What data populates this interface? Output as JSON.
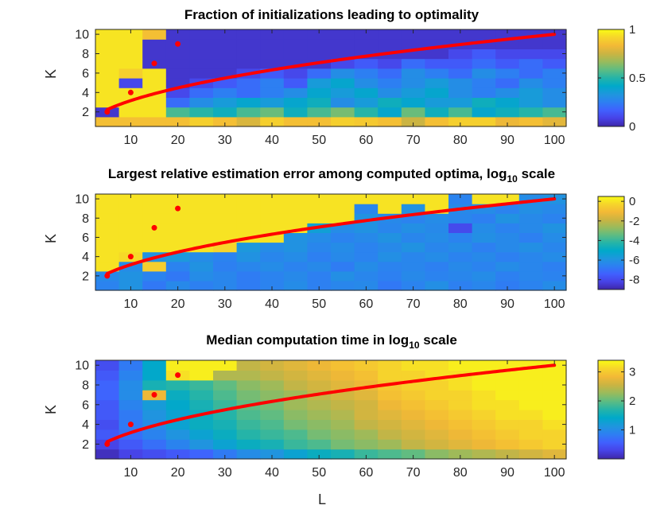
{
  "colormap": [
    "#3e26a8",
    "#4742e6",
    "#4060fe",
    "#2d7ff2",
    "#1e97dd",
    "#00a9c9",
    "#25b4a8",
    "#5dbc83",
    "#99bb5c",
    "#cbb442",
    "#f3b936",
    "#f6d52b",
    "#f9fb15"
  ],
  "xlabel": "L",
  "ylabel": "K",
  "x_ticks": [
    10,
    20,
    30,
    40,
    50,
    60,
    70,
    80,
    90,
    100
  ],
  "y_ticks": [
    2,
    4,
    6,
    8,
    10
  ],
  "chart_data": [
    {
      "type": "heatmap",
      "title": "Fraction of initializations leading to optimality",
      "xlim": [
        2.5,
        102.5
      ],
      "ylim": [
        0.5,
        10.5
      ],
      "zlim": [
        0,
        1
      ],
      "colorbar_ticks": [
        {
          "v": 0,
          "label": "0"
        },
        {
          "v": 0.5,
          "label": "0.5"
        },
        {
          "v": 1,
          "label": "1"
        }
      ],
      "x": [
        5,
        10,
        15,
        20,
        25,
        30,
        35,
        40,
        45,
        50,
        55,
        60,
        65,
        70,
        75,
        80,
        85,
        90,
        95,
        100
      ],
      "y": [
        1,
        2,
        3,
        4,
        5,
        6,
        7,
        8,
        9,
        10
      ],
      "z": [
        [
          0.85,
          0.85,
          0.85,
          0.85,
          0.9,
          0.85,
          0.78,
          0.9,
          0.85,
          0.85,
          0.9,
          0.88,
          0.85,
          0.75,
          0.85,
          0.9,
          0.9,
          0.82,
          0.85,
          0.8
        ],
        [
          0.05,
          0.95,
          0.95,
          0.55,
          0.5,
          0.45,
          0.55,
          0.6,
          0.45,
          0.55,
          0.62,
          0.5,
          0.4,
          0.6,
          0.45,
          0.55,
          0.4,
          0.45,
          0.5,
          0.55
        ],
        [
          0.95,
          0.95,
          0.95,
          0.2,
          0.3,
          0.35,
          0.4,
          0.35,
          0.4,
          0.45,
          0.3,
          0.35,
          0.45,
          0.4,
          0.35,
          0.35,
          0.45,
          0.4,
          0.35,
          0.3
        ],
        [
          0.95,
          0.95,
          0.95,
          0.1,
          0.2,
          0.25,
          0.2,
          0.25,
          0.3,
          0.4,
          0.35,
          0.4,
          0.3,
          0.35,
          0.4,
          0.3,
          0.25,
          0.3,
          0.35,
          0.3
        ],
        [
          0.95,
          0.1,
          0.95,
          0.05,
          0.1,
          0.15,
          0.2,
          0.25,
          0.15,
          0.35,
          0.4,
          0.3,
          0.25,
          0.3,
          0.35,
          0.3,
          0.25,
          0.2,
          0.3,
          0.25
        ],
        [
          0.95,
          0.9,
          0.95,
          0.05,
          0.05,
          0.05,
          0.1,
          0.15,
          0.1,
          0.2,
          0.3,
          0.25,
          0.2,
          0.3,
          0.25,
          0.2,
          0.3,
          0.25,
          0.2,
          0.25
        ],
        [
          0.95,
          0.95,
          0.05,
          0.05,
          0.05,
          0.05,
          0.05,
          0.05,
          0.05,
          0.05,
          0.1,
          0.15,
          0.1,
          0.2,
          0.15,
          0.15,
          0.2,
          0.15,
          0.2,
          0.15
        ],
        [
          0.95,
          0.95,
          0.05,
          0.05,
          0.05,
          0.05,
          0.05,
          0.05,
          0.05,
          0.05,
          0.05,
          0.05,
          0.05,
          0.05,
          0.05,
          0.1,
          0.15,
          0.1,
          0.1,
          0.1
        ],
        [
          0.95,
          0.95,
          0.05,
          0.05,
          0.05,
          0.05,
          0.05,
          0.05,
          0.05,
          0.05,
          0.05,
          0.05,
          0.05,
          0.05,
          0.05,
          0.05,
          0.05,
          0.05,
          0.05,
          0.05
        ],
        [
          0.95,
          0.95,
          0.85,
          0.05,
          0.05,
          0.05,
          0.05,
          0.05,
          0.05,
          0.05,
          0.05,
          0.05,
          0.05,
          0.05,
          0.05,
          0.05,
          0.05,
          0.05,
          0.05,
          0.05
        ]
      ],
      "points": [
        {
          "x": 5,
          "y": 2
        },
        {
          "x": 10,
          "y": 4
        },
        {
          "x": 15,
          "y": 7
        },
        {
          "x": 20,
          "y": 9
        }
      ],
      "curve": {
        "x_from": 5,
        "x_to": 100,
        "formula": "K = sqrt(L)"
      }
    },
    {
      "type": "heatmap",
      "title": "Largest relative estimation error among computed optima, log",
      "title_sub": "10",
      "title_suffix": " scale",
      "xlim": [
        2.5,
        102.5
      ],
      "ylim": [
        0.5,
        10.5
      ],
      "zlim": [
        -9,
        0.5
      ],
      "colorbar_ticks": [
        {
          "v": 0,
          "label": "0"
        },
        {
          "v": -2,
          "label": "-2"
        },
        {
          "v": -4,
          "label": "-4"
        },
        {
          "v": -6,
          "label": "-6"
        },
        {
          "v": -8,
          "label": "-8"
        }
      ],
      "x": [
        5,
        10,
        15,
        20,
        25,
        30,
        35,
        40,
        45,
        50,
        55,
        60,
        65,
        70,
        75,
        80,
        85,
        90,
        95,
        100
      ],
      "y": [
        1,
        2,
        3,
        4,
        5,
        6,
        7,
        8,
        9,
        10
      ],
      "z": [
        [
          -6.5,
          -6.0,
          -6.8,
          -6.3,
          -6.6,
          -6.4,
          -6.7,
          -6.5,
          -6.2,
          -6.6,
          -6.4,
          -6.3,
          -6.8,
          -6.5,
          -6.1,
          -6.6,
          -6.4,
          -6.7,
          -6.5,
          -6.2
        ],
        [
          -6.3,
          -6.0,
          -6.5,
          -6.8,
          -6.2,
          -6.4,
          -6.7,
          -6.5,
          -6.3,
          -6.6,
          -6.1,
          -6.4,
          -6.6,
          -6.3,
          -6.5,
          -6.4,
          -6.2,
          -6.6,
          -6.4,
          -6.5
        ],
        [
          0.0,
          -6.2,
          -0.5,
          -6.5,
          -6.0,
          -6.6,
          -6.4,
          -6.2,
          -6.5,
          -6.3,
          -6.7,
          -6.2,
          -6.5,
          -6.4,
          -6.6,
          -6.3,
          -6.5,
          -6.2,
          -6.4,
          -6.6
        ],
        [
          0.0,
          -0.2,
          -6.0,
          -5.8,
          -6.2,
          -6.5,
          -6.0,
          -6.4,
          -6.2,
          -6.6,
          -6.3,
          -6.5,
          -6.1,
          -6.4,
          -6.2,
          -6.5,
          -6.3,
          -6.6,
          -6.4,
          -6.2
        ],
        [
          0.0,
          0.0,
          0.0,
          0.0,
          0.0,
          -0.3,
          -5.8,
          -6.2,
          -6.0,
          -6.4,
          -6.2,
          -6.5,
          -6.3,
          -6.0,
          -6.4,
          -6.2,
          -6.6,
          -6.3,
          -6.1,
          -6.4
        ],
        [
          0.0,
          0.0,
          0.0,
          0.0,
          0.0,
          0.0,
          0.0,
          0.0,
          -6.0,
          -6.2,
          -6.5,
          -6.3,
          -6.0,
          -6.4,
          -6.2,
          -6.5,
          -6.1,
          -6.3,
          -6.6,
          -6.2
        ],
        [
          0.0,
          0.0,
          0.0,
          0.0,
          0.0,
          0.0,
          0.0,
          0.0,
          0.0,
          -5.5,
          -6.2,
          -6.0,
          -6.4,
          -6.1,
          -6.3,
          -8.0,
          -6.2,
          -6.5,
          -6.3,
          -6.0
        ],
        [
          0.0,
          0.0,
          0.0,
          0.0,
          0.0,
          0.0,
          0.0,
          0.0,
          0.0,
          0.0,
          0.0,
          -6.0,
          -6.3,
          -6.5,
          -6.2,
          -6.4,
          -6.6,
          -6.0,
          -6.3,
          -6.5
        ],
        [
          0.0,
          0.0,
          0.0,
          0.0,
          0.0,
          0.0,
          0.0,
          0.0,
          0.0,
          0.0,
          0.0,
          -6.4,
          0.0,
          -6.0,
          0.0,
          -6.3,
          -6.2,
          -6.5,
          -6.1,
          -6.3
        ],
        [
          0.0,
          0.0,
          0.0,
          0.0,
          0.0,
          0.0,
          0.0,
          0.0,
          0.0,
          0.0,
          0.0,
          0.0,
          0.0,
          0.0,
          0.0,
          -6.5,
          0.0,
          0.0,
          -6.2,
          -6.0
        ]
      ],
      "points": [
        {
          "x": 5,
          "y": 2
        },
        {
          "x": 10,
          "y": 4
        },
        {
          "x": 15,
          "y": 7
        },
        {
          "x": 20,
          "y": 9
        }
      ],
      "curve": {
        "x_from": 5,
        "x_to": 100,
        "formula": "K = sqrt(L)"
      }
    },
    {
      "type": "heatmap",
      "title": "Median computation time in log",
      "title_sub": "10",
      "title_suffix": " scale",
      "xlim": [
        2.5,
        102.5
      ],
      "ylim": [
        0.5,
        10.5
      ],
      "zlim": [
        0,
        3.4
      ],
      "colorbar_ticks": [
        {
          "v": 1,
          "label": "1"
        },
        {
          "v": 2,
          "label": "2"
        },
        {
          "v": 3,
          "label": "3"
        }
      ],
      "x": [
        5,
        10,
        15,
        20,
        25,
        30,
        35,
        40,
        45,
        50,
        55,
        60,
        65,
        70,
        75,
        80,
        85,
        90,
        95,
        100
      ],
      "y": [
        1,
        2,
        3,
        4,
        5,
        6,
        7,
        8,
        9,
        10
      ],
      "z": [
        [
          0.1,
          0.3,
          0.4,
          0.5,
          0.6,
          0.8,
          1.0,
          1.1,
          1.3,
          1.5,
          1.6,
          1.8,
          1.9,
          2.0,
          2.2,
          2.3,
          2.4,
          2.5,
          2.6,
          2.7
        ],
        [
          0.3,
          0.5,
          0.7,
          0.9,
          1.1,
          1.3,
          1.5,
          1.6,
          1.8,
          1.9,
          2.1,
          2.2,
          2.3,
          2.5,
          2.6,
          2.7,
          2.8,
          2.9,
          3.0,
          3.1
        ],
        [
          0.5,
          0.7,
          0.9,
          1.1,
          1.3,
          1.5,
          1.7,
          1.8,
          1.9,
          2.1,
          2.2,
          2.3,
          2.5,
          2.6,
          2.7,
          2.8,
          2.9,
          3.0,
          3.1,
          3.1
        ],
        [
          0.4,
          0.8,
          1.0,
          1.3,
          1.5,
          1.6,
          1.8,
          1.9,
          2.1,
          2.2,
          2.3,
          2.5,
          2.6,
          2.7,
          2.8,
          2.9,
          3.0,
          3.1,
          3.1,
          3.2
        ],
        [
          0.5,
          0.8,
          1.1,
          1.3,
          1.5,
          1.7,
          1.9,
          2.0,
          2.2,
          2.3,
          2.4,
          2.6,
          2.7,
          2.8,
          2.9,
          3.0,
          3.1,
          3.2,
          3.2,
          3.3
        ],
        [
          0.5,
          0.9,
          1.2,
          1.4,
          1.6,
          1.8,
          2.0,
          2.1,
          2.3,
          2.4,
          2.5,
          2.6,
          2.8,
          2.9,
          3.0,
          3.1,
          3.2,
          3.2,
          3.3,
          3.3
        ],
        [
          0.6,
          1.0,
          2.8,
          1.5,
          1.7,
          1.9,
          2.1,
          2.2,
          2.3,
          2.5,
          2.6,
          2.7,
          2.9,
          3.0,
          3.1,
          3.1,
          3.2,
          3.3,
          3.3,
          3.3
        ],
        [
          0.6,
          1.0,
          1.6,
          1.7,
          1.8,
          2.0,
          2.2,
          2.3,
          2.5,
          2.6,
          2.7,
          2.8,
          3.0,
          3.1,
          3.1,
          3.2,
          3.3,
          3.3,
          3.3,
          3.3
        ],
        [
          0.5,
          0.9,
          1.4,
          3.2,
          3.3,
          2.4,
          2.4,
          2.5,
          2.6,
          2.7,
          2.8,
          2.9,
          3.1,
          3.1,
          3.2,
          3.2,
          3.3,
          3.3,
          3.3,
          3.3
        ],
        [
          0.4,
          0.8,
          1.4,
          3.3,
          3.3,
          3.3,
          2.5,
          2.6,
          2.7,
          2.8,
          2.9,
          3.0,
          3.1,
          3.2,
          3.2,
          3.3,
          3.3,
          3.3,
          3.3,
          3.3
        ]
      ],
      "points": [
        {
          "x": 5,
          "y": 2
        },
        {
          "x": 10,
          "y": 4
        },
        {
          "x": 15,
          "y": 7
        },
        {
          "x": 20,
          "y": 9
        }
      ],
      "curve": {
        "x_from": 5,
        "x_to": 100,
        "formula": "K = sqrt(L)"
      }
    }
  ]
}
